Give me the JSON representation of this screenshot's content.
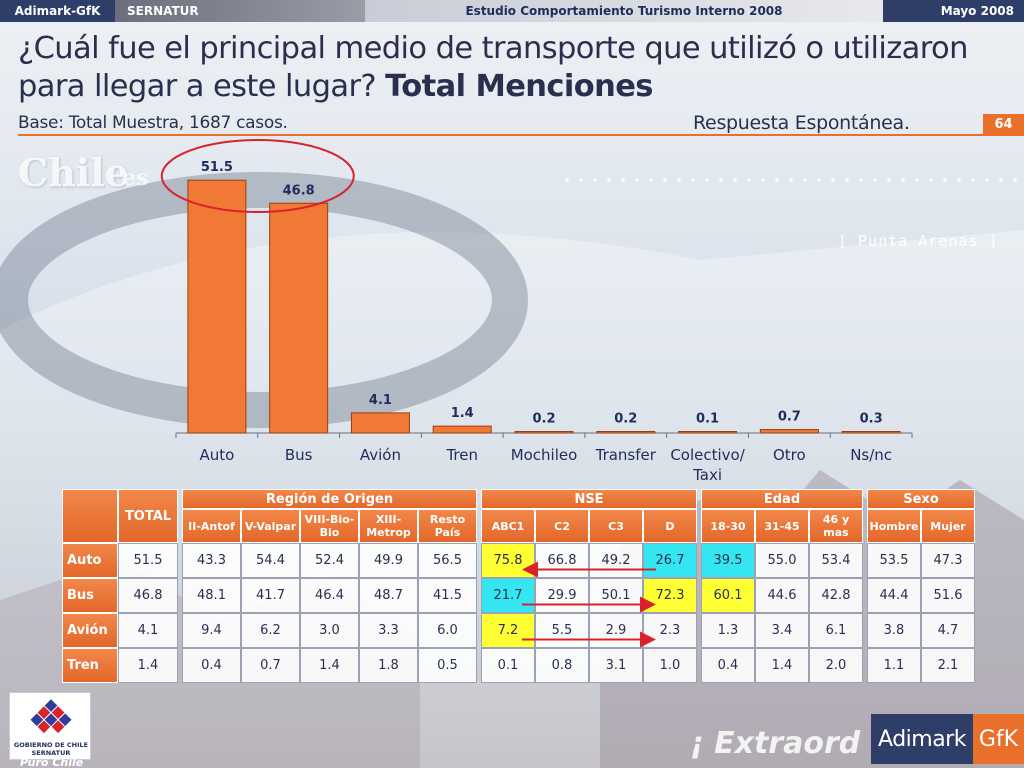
{
  "header": {
    "brand_left": "Adimark-GfK",
    "client": "SERNATUR",
    "study": "Estudio Comportamiento Turismo Interno 2008",
    "date": "Mayo 2008"
  },
  "slide": {
    "question": "¿Cuál fue el principal medio de transporte que utilizó o utilizaron para llegar a este lugar?",
    "question_bold": "Total Menciones",
    "base": "Base: Total Muestra, 1687 casos.",
    "response_type": "Respuesta Espontánea.",
    "page_number": "64"
  },
  "background": {
    "watermark_big": "Chile",
    "watermark_small": "es",
    "place_label": "[ Punta Arenas ]",
    "slogan": "¡ Extraord"
  },
  "chart_data": {
    "type": "bar",
    "categories": [
      "Auto",
      "Bus",
      "Avión",
      "Tren",
      "Mochileo",
      "Transfer",
      "Colectivo/ Taxi",
      "Otro",
      "Ns/nc"
    ],
    "values": [
      51.5,
      46.8,
      4.1,
      1.4,
      0.2,
      0.2,
      0.1,
      0.7,
      0.3
    ],
    "value_labels": [
      "51.5",
      "46.8",
      "4.1",
      "1.4",
      "0.2",
      "0.2",
      "0.1",
      "0.7",
      "0.3"
    ],
    "ylim": [
      0,
      55
    ],
    "grid": false,
    "bar_color": "#f07a35",
    "highlight": "Auto and Bus circled in red",
    "highlight_color": "#d9232b"
  },
  "table": {
    "total_label": "TOTAL",
    "groups": [
      {
        "label": "Región de Origen",
        "columns": [
          "II-Antof",
          "V-Valpar",
          "VIII-Bio-Bio",
          "XIII-Metrop",
          "Resto País"
        ]
      },
      {
        "label": "NSE",
        "columns": [
          "ABC1",
          "C2",
          "C3",
          "D"
        ]
      },
      {
        "label": "Edad",
        "columns": [
          "18-30",
          "31-45",
          "46 y mas"
        ]
      },
      {
        "label": "Sexo",
        "columns": [
          "Hombre",
          "Mujer"
        ]
      }
    ],
    "rows": [
      {
        "label": "Auto",
        "total": "51.5",
        "groups": [
          [
            "43.3",
            "54.4",
            "52.4",
            "49.9",
            "56.5"
          ],
          [
            "75.8",
            "66.8",
            "49.2",
            "26.7"
          ],
          [
            "39.5",
            "55.0",
            "53.4"
          ],
          [
            "53.5",
            "47.3"
          ]
        ]
      },
      {
        "label": "Bus",
        "total": "46.8",
        "groups": [
          [
            "48.1",
            "41.7",
            "46.4",
            "48.7",
            "41.5"
          ],
          [
            "21.7",
            "29.9",
            "50.1",
            "72.3"
          ],
          [
            "60.1",
            "44.6",
            "42.8"
          ],
          [
            "44.4",
            "51.6"
          ]
        ]
      },
      {
        "label": "Avión",
        "total": "4.1",
        "groups": [
          [
            "9.4",
            "6.2",
            "3.0",
            "3.3",
            "6.0"
          ],
          [
            "7.2",
            "5.5",
            "2.9",
            "2.3"
          ],
          [
            "1.3",
            "3.4",
            "6.1"
          ],
          [
            "3.8",
            "4.7"
          ]
        ]
      },
      {
        "label": "Tren",
        "total": "1.4",
        "groups": [
          [
            "0.4",
            "0.7",
            "1.4",
            "1.8",
            "0.5"
          ],
          [
            "0.1",
            "0.8",
            "3.1",
            "1.0"
          ],
          [
            "0.4",
            "1.4",
            "2.0"
          ],
          [
            "1.1",
            "2.1"
          ]
        ]
      }
    ],
    "highlight_colors": {
      "yellow": "#ffff33",
      "cyan": "#33e6f2"
    },
    "highlights": [
      {
        "row": 0,
        "group": 1,
        "col": 0,
        "color": "yellow"
      },
      {
        "row": 0,
        "group": 1,
        "col": 3,
        "color": "cyan"
      },
      {
        "row": 0,
        "group": 2,
        "col": 0,
        "color": "cyan"
      },
      {
        "row": 1,
        "group": 1,
        "col": 0,
        "color": "cyan"
      },
      {
        "row": 1,
        "group": 1,
        "col": 3,
        "color": "yellow"
      },
      {
        "row": 1,
        "group": 2,
        "col": 0,
        "color": "yellow"
      },
      {
        "row": 2,
        "group": 1,
        "col": 0,
        "color": "yellow"
      }
    ],
    "arrow_color": "#d9232b"
  },
  "logos": {
    "gobierno_line1": "GOBIERNO DE CHILE",
    "gobierno_line2": "SERNATUR",
    "puro_chile": "Puro Chile",
    "adimark": "Adimark",
    "gfk": "GfK"
  }
}
